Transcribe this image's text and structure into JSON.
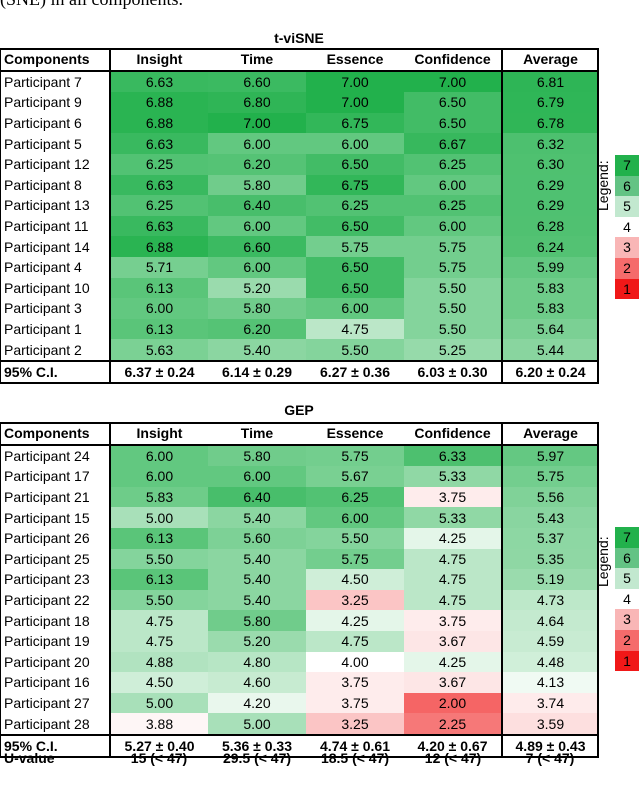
{
  "intro_text": "(SNE) in all components.",
  "columns": [
    "Components",
    "Insight",
    "Time",
    "Essence",
    "Confidence",
    "Average"
  ],
  "legend_label": "Legend:",
  "legend": [
    {
      "label": "7",
      "color": "#22b14c"
    },
    {
      "label": "6",
      "color": "#63c384"
    },
    {
      "label": "5",
      "color": "#c2e8cf"
    },
    {
      "label": "4",
      "color": "#ffffff"
    },
    {
      "label": "3",
      "color": "#f9b6b6"
    },
    {
      "label": "2",
      "color": "#f56b6b"
    },
    {
      "label": "1",
      "color": "#f01818"
    }
  ],
  "tables": [
    {
      "title": "t-viSNE",
      "rows": [
        {
          "name": "Participant 7",
          "values": [
            "6.63",
            "6.60",
            "7.00",
            "7.00",
            "6.81"
          ]
        },
        {
          "name": "Participant 9",
          "values": [
            "6.88",
            "6.80",
            "7.00",
            "6.50",
            "6.79"
          ]
        },
        {
          "name": "Participant 6",
          "values": [
            "6.88",
            "7.00",
            "6.75",
            "6.50",
            "6.78"
          ]
        },
        {
          "name": "Participant 5",
          "values": [
            "6.63",
            "6.00",
            "6.00",
            "6.67",
            "6.32"
          ]
        },
        {
          "name": "Participant 12",
          "values": [
            "6.25",
            "6.20",
            "6.50",
            "6.25",
            "6.30"
          ]
        },
        {
          "name": "Participant 8",
          "values": [
            "6.63",
            "5.80",
            "6.75",
            "6.00",
            "6.29"
          ]
        },
        {
          "name": "Participant 13",
          "values": [
            "6.25",
            "6.40",
            "6.25",
            "6.25",
            "6.29"
          ]
        },
        {
          "name": "Participant 11",
          "values": [
            "6.63",
            "6.00",
            "6.50",
            "6.00",
            "6.28"
          ]
        },
        {
          "name": "Participant 14",
          "values": [
            "6.88",
            "6.60",
            "5.75",
            "5.75",
            "6.24"
          ]
        },
        {
          "name": "Participant 4",
          "values": [
            "5.71",
            "6.00",
            "6.50",
            "5.75",
            "5.99"
          ]
        },
        {
          "name": "Participant 10",
          "values": [
            "6.13",
            "5.20",
            "6.50",
            "5.50",
            "5.83"
          ]
        },
        {
          "name": "Participant 3",
          "values": [
            "6.00",
            "5.80",
            "6.00",
            "5.50",
            "5.83"
          ]
        },
        {
          "name": "Participant 1",
          "values": [
            "6.13",
            "6.20",
            "4.75",
            "5.50",
            "5.64"
          ]
        },
        {
          "name": "Participant 2",
          "values": [
            "5.63",
            "5.40",
            "5.50",
            "5.25",
            "5.44"
          ]
        }
      ],
      "ci": {
        "name": "95% C.I.",
        "values": [
          "6.37 ± 0.24",
          "6.14 ± 0.29",
          "6.27 ± 0.36",
          "6.03 ± 0.30",
          "6.20 ± 0.24"
        ]
      }
    },
    {
      "title": "GEP",
      "rows": [
        {
          "name": "Participant 24",
          "values": [
            "6.00",
            "5.80",
            "5.75",
            "6.33",
            "5.97"
          ]
        },
        {
          "name": "Participant 17",
          "values": [
            "6.00",
            "6.00",
            "5.67",
            "5.33",
            "5.75"
          ]
        },
        {
          "name": "Participant 21",
          "values": [
            "5.83",
            "6.40",
            "6.25",
            "3.75",
            "5.56"
          ]
        },
        {
          "name": "Participant 15",
          "values": [
            "5.00",
            "5.40",
            "6.00",
            "5.33",
            "5.43"
          ]
        },
        {
          "name": "Participant 26",
          "values": [
            "6.13",
            "5.60",
            "5.50",
            "4.25",
            "5.37"
          ]
        },
        {
          "name": "Participant 25",
          "values": [
            "5.50",
            "5.40",
            "5.75",
            "4.75",
            "5.35"
          ]
        },
        {
          "name": "Participant 23",
          "values": [
            "6.13",
            "5.40",
            "4.50",
            "4.75",
            "5.19"
          ]
        },
        {
          "name": "Participant 22",
          "values": [
            "5.50",
            "5.40",
            "3.25",
            "4.75",
            "4.73"
          ]
        },
        {
          "name": "Participant 18",
          "values": [
            "4.75",
            "5.80",
            "4.25",
            "3.75",
            "4.64"
          ]
        },
        {
          "name": "Participant 19",
          "values": [
            "4.75",
            "5.20",
            "4.75",
            "3.67",
            "4.59"
          ]
        },
        {
          "name": "Participant 20",
          "values": [
            "4.88",
            "4.80",
            "4.00",
            "4.25",
            "4.48"
          ]
        },
        {
          "name": "Participant 16",
          "values": [
            "4.50",
            "4.60",
            "3.75",
            "3.67",
            "4.13"
          ]
        },
        {
          "name": "Participant 27",
          "values": [
            "5.00",
            "4.20",
            "3.75",
            "2.00",
            "3.74"
          ]
        },
        {
          "name": "Participant 28",
          "values": [
            "3.88",
            "5.00",
            "3.25",
            "2.25",
            "3.59"
          ]
        }
      ],
      "ci": {
        "name": "95% C.I.",
        "values": [
          "5.27 ± 0.40",
          "5.36 ± 0.33",
          "4.74 ± 0.61",
          "4.20 ± 0.67",
          "4.89 ± 0.43"
        ]
      }
    }
  ],
  "u_value": {
    "label": "U-value",
    "values": [
      "15 (< 47)",
      "29.5 (< 47)",
      "18.5 (< 47)",
      "12 (< 47)",
      "7 (< 47)"
    ]
  }
}
